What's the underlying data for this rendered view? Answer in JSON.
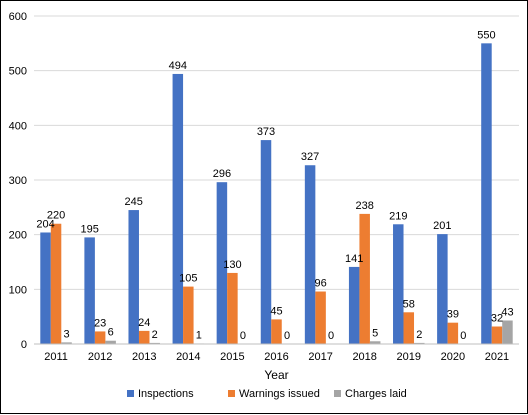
{
  "chart_data": {
    "type": "bar",
    "title": "",
    "xlabel": "Year",
    "ylabel": "",
    "ylim": [
      0,
      600
    ],
    "yticks": [
      0,
      100,
      200,
      300,
      400,
      500,
      600
    ],
    "grid": "horizontal",
    "legend_position": "bottom",
    "categories": [
      "2011",
      "2012",
      "2013",
      "2014",
      "2015",
      "2016",
      "2017",
      "2018",
      "2019",
      "2020",
      "2021"
    ],
    "series": [
      {
        "name": "Inspections",
        "color": "#4472C4",
        "values": [
          204,
          195,
          245,
          494,
          296,
          373,
          327,
          141,
          219,
          201,
          550
        ]
      },
      {
        "name": "Warnings issued",
        "color": "#ED7D31",
        "values": [
          220,
          23,
          24,
          105,
          130,
          45,
          96,
          238,
          58,
          39,
          32
        ]
      },
      {
        "name": "Charges laid",
        "color": "#A5A5A5",
        "values": [
          3,
          6,
          2,
          1,
          0,
          0,
          0,
          5,
          2,
          0,
          43
        ]
      }
    ]
  }
}
